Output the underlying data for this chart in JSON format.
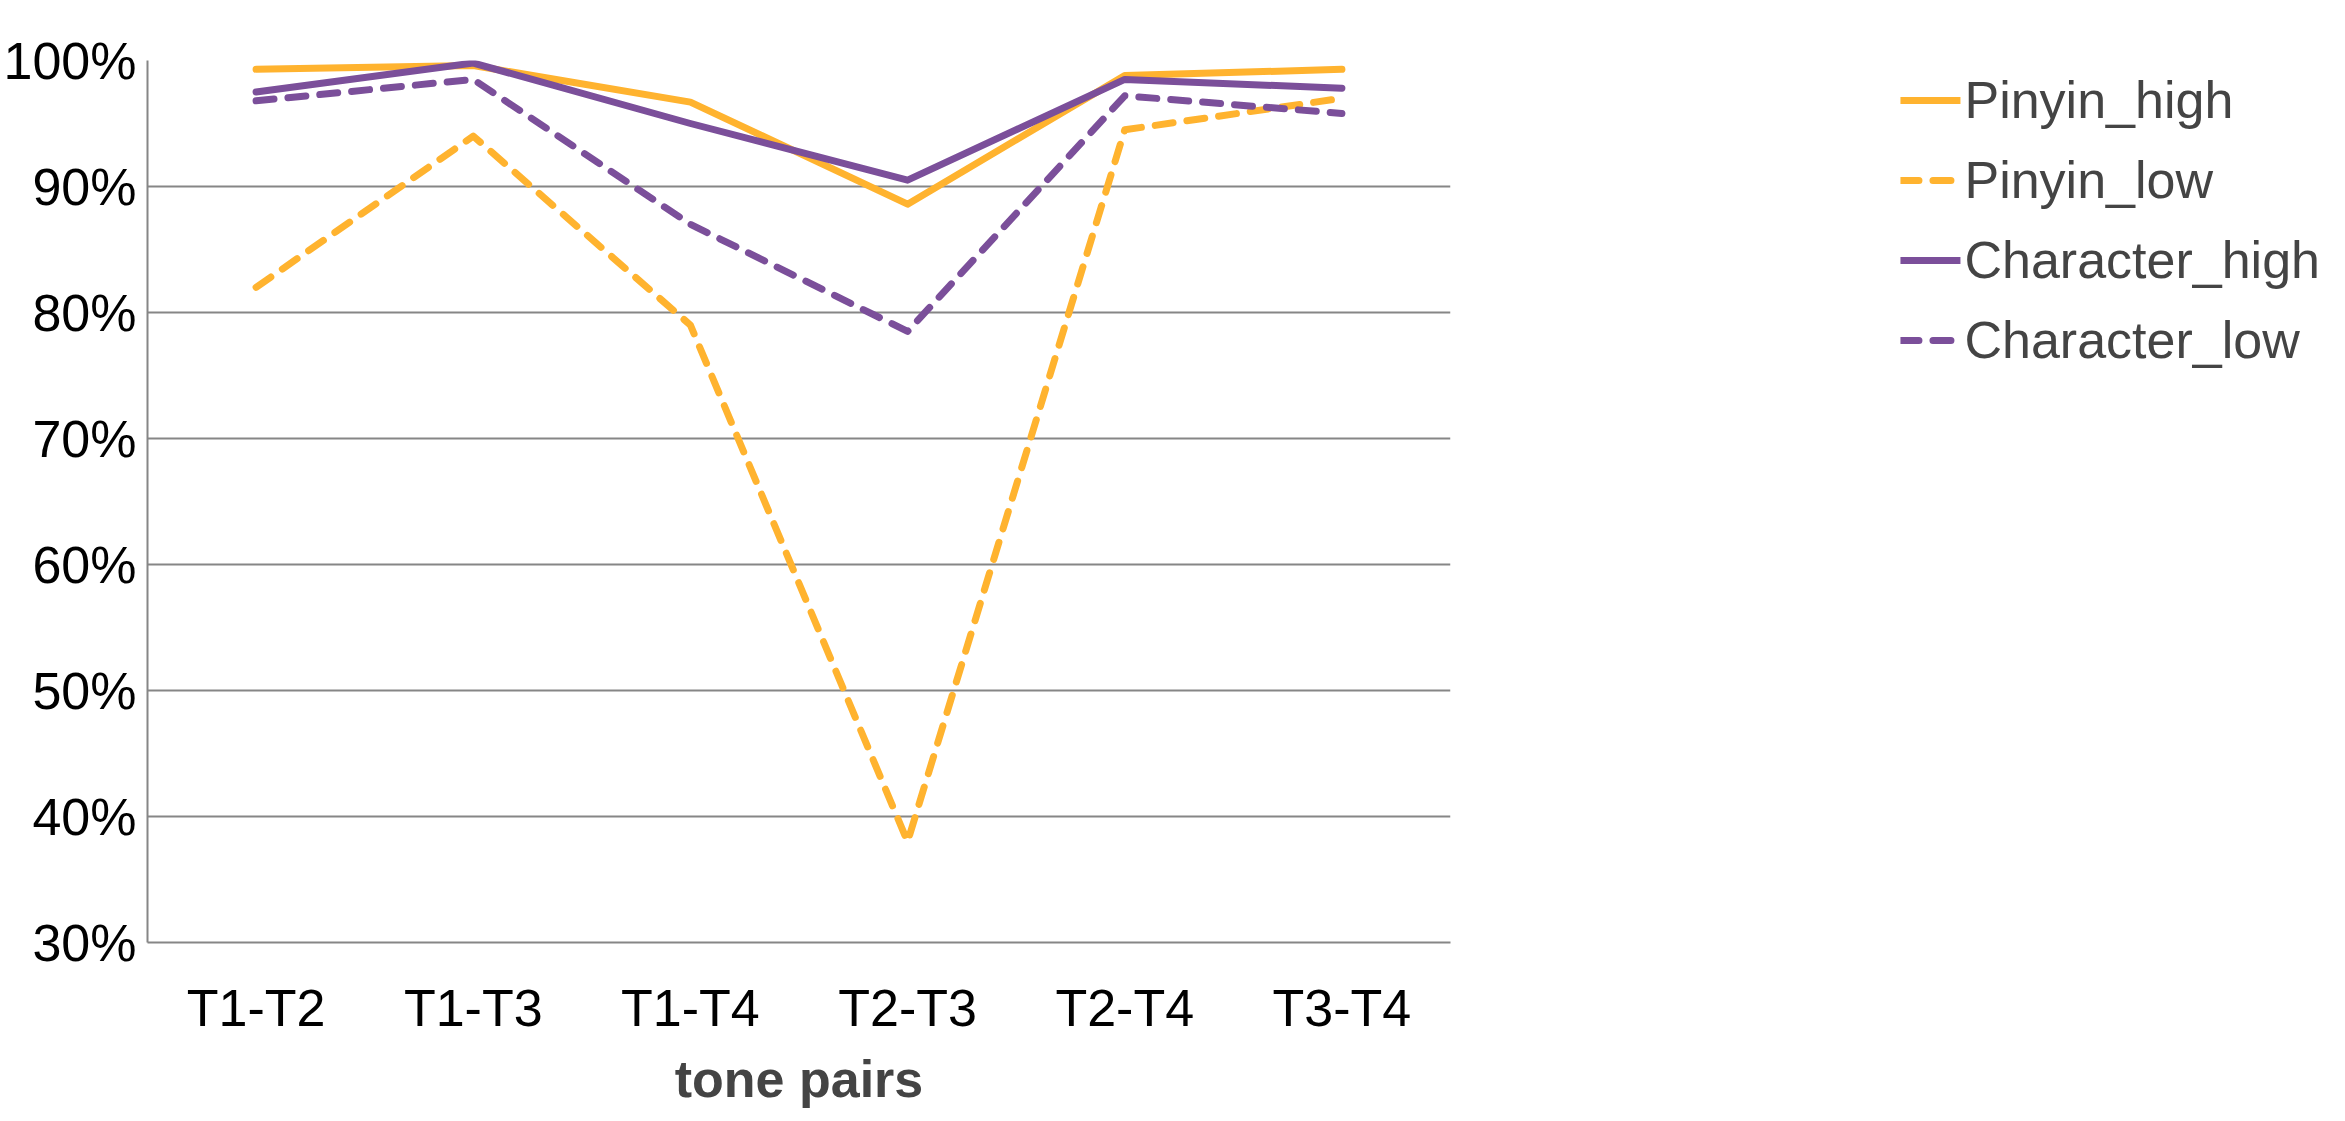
{
  "chart_data": {
    "type": "line",
    "xlabel": "tone pairs",
    "categories": [
      "T1-T2",
      "T1-T3",
      "T1-T4",
      "T2-T3",
      "T2-T4",
      "T3-T4"
    ],
    "series": [
      {
        "name": "Pinyin_high",
        "color": "#ffb32f",
        "line_style": "solid",
        "values": [
          99.3,
          99.6,
          96.7,
          88.6,
          98.8,
          99.3
        ]
      },
      {
        "name": "Pinyin_low",
        "color": "#ffb32f",
        "line_style": "dashed",
        "values": [
          82,
          94,
          79,
          38,
          94.5,
          97
        ]
      },
      {
        "name": "Character_high",
        "color": "#7b4f9a",
        "line_style": "solid",
        "values": [
          97.5,
          99.8,
          95,
          90.5,
          98.5,
          97.8
        ]
      },
      {
        "name": "Character_low",
        "color": "#7b4f9a",
        "line_style": "dashed",
        "values": [
          96.8,
          98.5,
          87,
          78.5,
          97.2,
          95.8
        ]
      }
    ],
    "ylim": [
      30,
      100
    ],
    "yticks": [
      {
        "value": 30,
        "label": "30%"
      },
      {
        "value": 40,
        "label": "40%"
      },
      {
        "value": 50,
        "label": "50%"
      },
      {
        "value": 60,
        "label": "60%"
      },
      {
        "value": 70,
        "label": "70%"
      },
      {
        "value": 80,
        "label": "80%"
      },
      {
        "value": 90,
        "label": "90%"
      },
      {
        "value": 100,
        "label": "100%"
      }
    ],
    "grid": "y",
    "legend": "right",
    "marker": "none"
  }
}
